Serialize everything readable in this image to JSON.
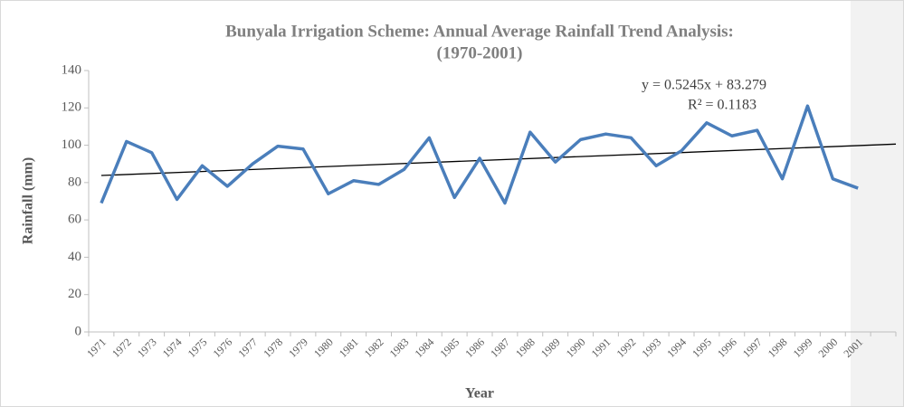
{
  "chart_data": {
    "type": "line",
    "title": "Bunyala Irrigation Scheme: Annual Average Rainfall Trend Analysis:",
    "subtitle": "(1970-2001)",
    "x_label": "Year",
    "y_label": "Rainfall (mm)",
    "categories": [
      "1971",
      "1972",
      "1973",
      "1974",
      "1975",
      "1976",
      "1977",
      "1978",
      "1979",
      "1980",
      "1981",
      "1982",
      "1983",
      "1984",
      "1985",
      "1986",
      "1987",
      "1988",
      "1989",
      "1990",
      "1991",
      "1992",
      "1993",
      "1994",
      "1995",
      "1996",
      "1997",
      "1998",
      "1999",
      "2000",
      "2001",
      null
    ],
    "series": [
      {
        "name": "Rainfall",
        "color": "#4a7ebb",
        "values": [
          69,
          102,
          96,
          71,
          89,
          78,
          90,
          99.5,
          98,
          74,
          81,
          79,
          87,
          104,
          72,
          93,
          69,
          107,
          91,
          103,
          106,
          104,
          89,
          97,
          112,
          105,
          108,
          82,
          121,
          82,
          77,
          null
        ]
      }
    ],
    "trend_line": {
      "color": "#000000",
      "values": [
        83.8,
        100.6
      ]
    },
    "annotations": [
      "y = 0.5245x + 83.279",
      "R² = 0.1183"
    ],
    "ylim": [
      0,
      140
    ],
    "yticks": [
      0,
      20,
      40,
      60,
      80,
      100,
      120,
      140
    ],
    "grid": false
  }
}
